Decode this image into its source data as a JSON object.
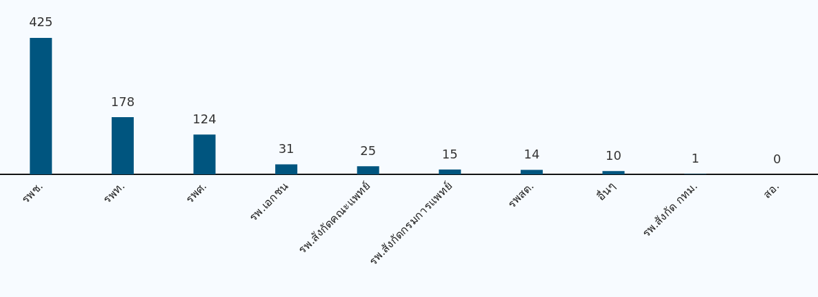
{
  "chart_data": {
    "type": "bar",
    "categories": [
      "รพช.",
      "รพท.",
      "รพศ.",
      "รพ.เอกชน",
      "รพ.สังกัดคณะแพทย์",
      "รพ.สังกัดกรมการแพทย์",
      "รพสต.",
      "อื่นๆ",
      "รพ.สังกัด กทม.",
      "สอ."
    ],
    "values": [
      425,
      178,
      124,
      31,
      25,
      15,
      14,
      10,
      1,
      0
    ],
    "color": "#00557f",
    "data_labels": true
  }
}
